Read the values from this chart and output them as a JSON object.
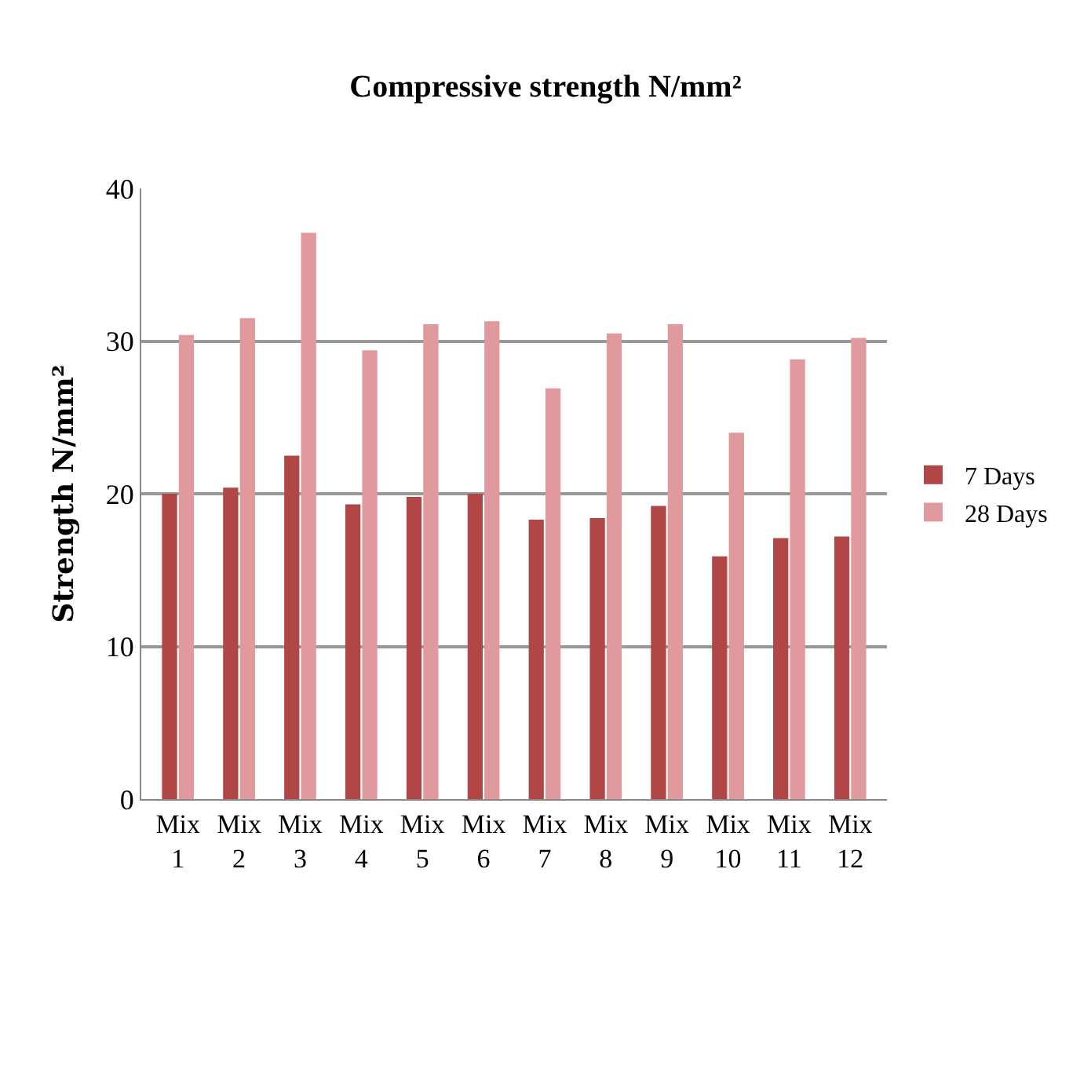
{
  "chart_data": {
    "type": "bar",
    "title": "Compressive strength N/mm²",
    "ylabel": "Strength N/mm²",
    "categories": [
      "Mix 1",
      "Mix 2",
      "Mix 3",
      "Mix 4",
      "Mix 5",
      "Mix 6",
      "Mix 7",
      "Mix 8",
      "Mix 9",
      "Mix 10",
      "Mix 11",
      "Mix 12"
    ],
    "series": [
      {
        "name": "7 Days",
        "color": "#b04646",
        "values": [
          20.0,
          20.4,
          22.5,
          19.3,
          19.8,
          20.0,
          18.3,
          18.4,
          19.2,
          15.9,
          17.1,
          17.2
        ]
      },
      {
        "name": "28 Days",
        "color": "#e0999c",
        "values": [
          30.4,
          31.5,
          37.1,
          29.4,
          31.1,
          31.3,
          26.9,
          30.5,
          31.1,
          24.0,
          28.8,
          30.2
        ]
      }
    ],
    "ylim": [
      0,
      40
    ],
    "yticks": [
      0,
      10,
      20,
      30,
      40
    ],
    "grid": "y",
    "legend": "right"
  }
}
